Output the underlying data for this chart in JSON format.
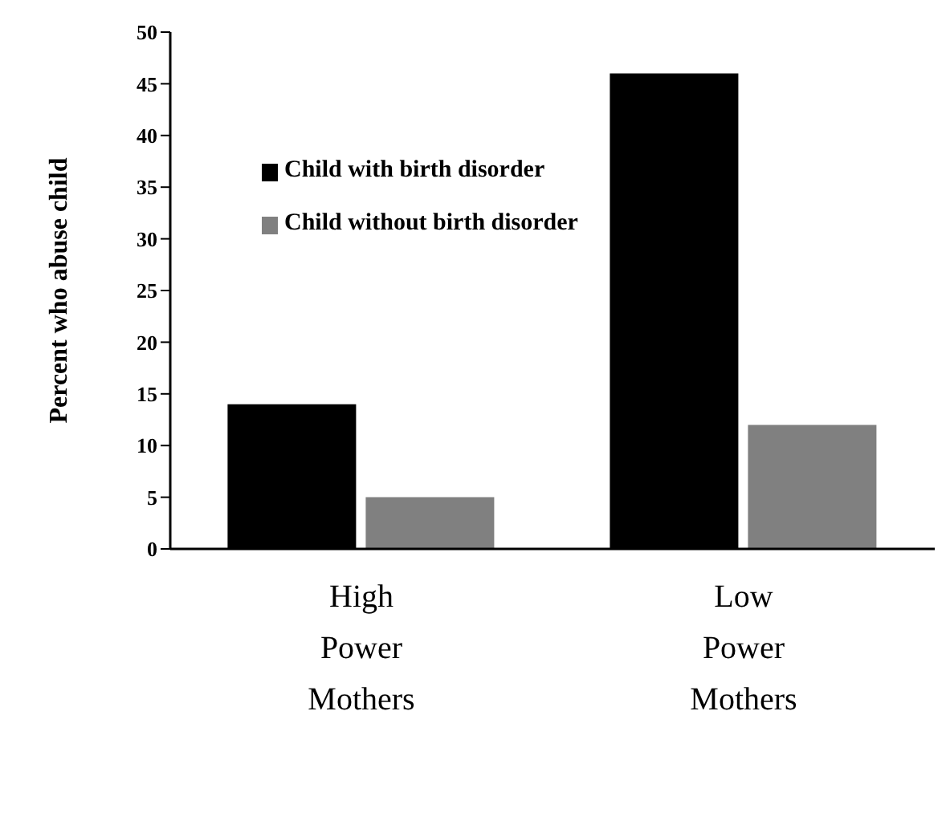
{
  "chart_data": {
    "type": "bar",
    "categories": [
      "High Power Mothers",
      "Low Power Mothers"
    ],
    "series": [
      {
        "name": "Child with birth disorder",
        "color": "#000000",
        "values": [
          14,
          46
        ]
      },
      {
        "name": "Child without birth disorder",
        "color": "#808080",
        "values": [
          5,
          12
        ]
      }
    ],
    "ylabel": "Percent who abuse child",
    "ylim": [
      0,
      50
    ],
    "yticks": [
      0,
      5,
      10,
      15,
      20,
      25,
      30,
      35,
      40,
      45,
      50
    ],
    "grid": false,
    "legend": "top left"
  }
}
